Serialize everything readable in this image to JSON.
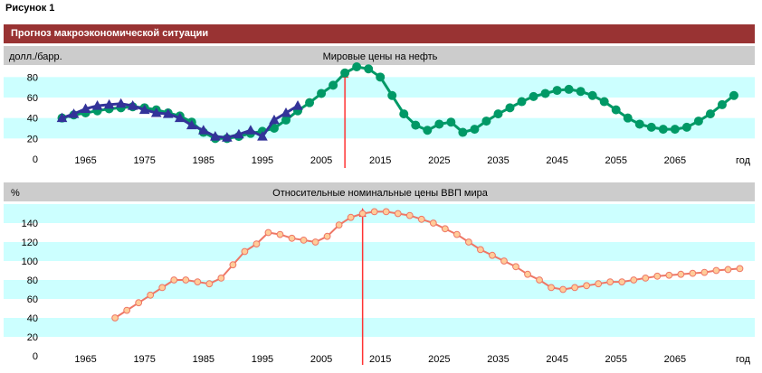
{
  "figure_label": "Рисунок 1",
  "section_title": "Прогноз макроэкономической ситуации",
  "colors": {
    "title_bar": "#993333",
    "band_cyan": "#ccffff",
    "chart_header": "#cccccc",
    "oil_forecast": "#009966",
    "oil_actual": "#333399",
    "gdp_line": "#ee7766",
    "gdp_marker_fill": "#ffcc99",
    "arrow": "#ff3333"
  },
  "chart_data": [
    {
      "type": "line",
      "title": "Мировые цены на нефть",
      "ylabel": "долл./барр.",
      "xlabel": "год",
      "ylim": [
        0,
        90
      ],
      "xlim": [
        1960,
        2077
      ],
      "yticks": [
        "0",
        "20",
        "40",
        "60",
        "80"
      ],
      "xticks": [
        "1965",
        "1975",
        "1985",
        "1995",
        "2005",
        "2015",
        "2025",
        "2035",
        "2045",
        "2055",
        "2065"
      ],
      "marker_year": 2009,
      "series": [
        {
          "role": "forecast",
          "marker": "circle",
          "x": [
            1961,
            1963,
            1965,
            1967,
            1969,
            1971,
            1973,
            1975,
            1977,
            1979,
            1981,
            1983,
            1985,
            1987,
            1989,
            1991,
            1993,
            1995,
            1997,
            1999,
            2001,
            2003,
            2005,
            2007,
            2009,
            2011,
            2013,
            2015,
            2017,
            2019,
            2021,
            2023,
            2025,
            2027,
            2029,
            2031,
            2033,
            2035,
            2037,
            2039,
            2041,
            2043,
            2045,
            2047,
            2049,
            2051,
            2053,
            2055,
            2057,
            2059,
            2061,
            2063,
            2065,
            2067,
            2069,
            2071,
            2073,
            2075
          ],
          "y": [
            40,
            43,
            45,
            47,
            49,
            50,
            51,
            50,
            48,
            45,
            42,
            36,
            26,
            20,
            20,
            22,
            25,
            27,
            30,
            38,
            47,
            55,
            64,
            72,
            84,
            90,
            88,
            80,
            62,
            44,
            33,
            28,
            34,
            36,
            26,
            29,
            37,
            44,
            50,
            56,
            61,
            64,
            67,
            68,
            66,
            62,
            56,
            48,
            40,
            34,
            31,
            29,
            29,
            31,
            37,
            44,
            53,
            62
          ]
        },
        {
          "role": "actual",
          "marker": "triangle",
          "x": [
            1961,
            1963,
            1965,
            1967,
            1969,
            1971,
            1973,
            1975,
            1977,
            1979,
            1981,
            1983,
            1985,
            1987,
            1989,
            1991,
            1993,
            1995,
            1997,
            1999,
            2001
          ],
          "y": [
            40,
            44,
            49,
            52,
            53,
            54,
            52,
            48,
            45,
            44,
            40,
            33,
            28,
            22,
            21,
            24,
            28,
            22,
            38,
            45,
            52
          ]
        }
      ]
    },
    {
      "type": "line",
      "title": "Относительные номинальные цены ВВП мира",
      "ylabel": "%",
      "xlabel": "год",
      "ylim": [
        0,
        160
      ],
      "xlim": [
        1960,
        2077
      ],
      "yticks": [
        "0",
        "20",
        "40",
        "60",
        "80",
        "100",
        "120",
        "140"
      ],
      "xticks": [
        "1965",
        "1975",
        "1985",
        "1995",
        "2005",
        "2015",
        "2025",
        "2035",
        "2045",
        "2055",
        "2065"
      ],
      "marker_year": 2012,
      "series": [
        {
          "role": "gdp",
          "marker": "circle",
          "x": [
            1970,
            1972,
            1974,
            1976,
            1978,
            1980,
            1982,
            1984,
            1986,
            1988,
            1990,
            1992,
            1994,
            1996,
            1998,
            2000,
            2002,
            2004,
            2006,
            2008,
            2010,
            2012,
            2014,
            2016,
            2018,
            2020,
            2022,
            2024,
            2026,
            2028,
            2030,
            2032,
            2034,
            2036,
            2038,
            2040,
            2042,
            2044,
            2046,
            2048,
            2050,
            2052,
            2054,
            2056,
            2058,
            2060,
            2062,
            2064,
            2066,
            2068,
            2070,
            2072,
            2074,
            2076
          ],
          "y": [
            40,
            48,
            56,
            64,
            72,
            80,
            80,
            78,
            76,
            82,
            96,
            110,
            118,
            130,
            128,
            124,
            122,
            120,
            126,
            138,
            146,
            150,
            152,
            152,
            150,
            148,
            144,
            140,
            134,
            128,
            120,
            112,
            106,
            100,
            94,
            86,
            80,
            72,
            70,
            72,
            74,
            76,
            78,
            78,
            80,
            82,
            84,
            85,
            86,
            87,
            88,
            90,
            91,
            92
          ]
        }
      ]
    }
  ]
}
